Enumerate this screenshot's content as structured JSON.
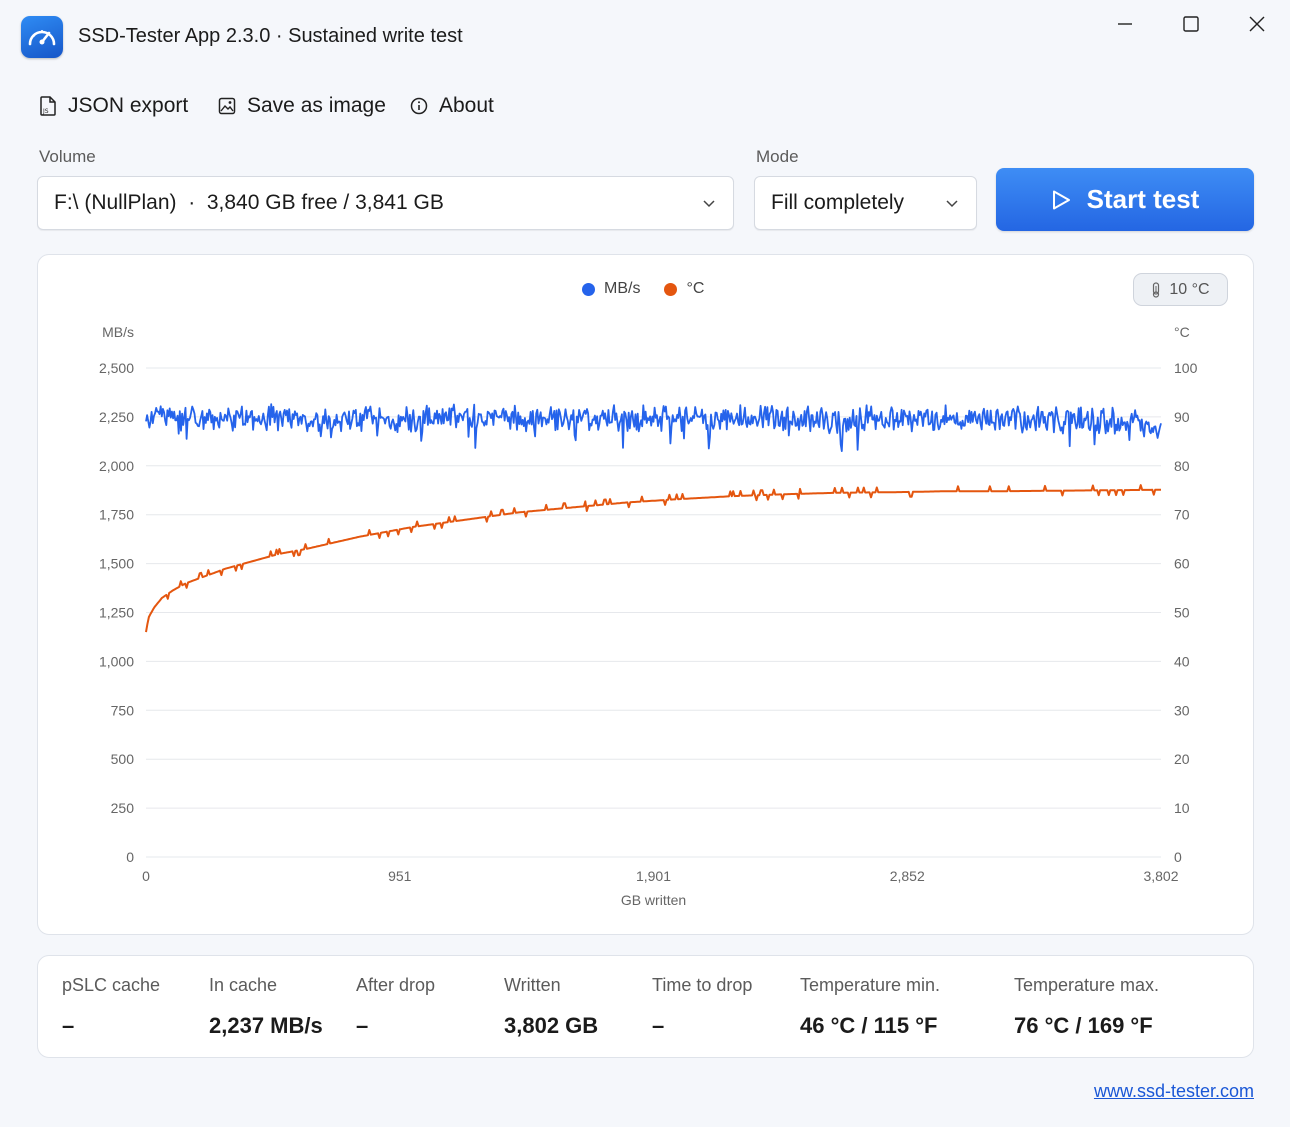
{
  "window": {
    "title": "SSD-Tester App 2.3.0 · Sustained write test"
  },
  "toolbar": {
    "json_export": "JSON export",
    "save_image": "Save as image",
    "about": "About"
  },
  "form": {
    "volume_label": "Volume",
    "volume_value": "F:\\ (NullPlan)  ·  3,840 GB free / 3,841 GB",
    "mode_label": "Mode",
    "mode_value": "Fill completely",
    "start_label": "Start test"
  },
  "chart_controls": {
    "temp_chip": "10 °C"
  },
  "colors": {
    "speed": "#2563eb",
    "temp": "#e4560f",
    "accent": "#2f78ee",
    "grid": "#e6e8ec"
  },
  "chart_data": {
    "type": "line",
    "xlabel": "GB written",
    "x_ticks": [
      "0",
      "951",
      "1,901",
      "2,852",
      "3,802"
    ],
    "xlim": [
      0,
      3802
    ],
    "y_left": {
      "unit": "MB/s",
      "lim": [
        0,
        2500
      ],
      "ticks": [
        "2,500",
        "2,250",
        "2,000",
        "1,750",
        "1,500",
        "1,250",
        "1,000",
        "750",
        "500",
        "250",
        "0"
      ]
    },
    "y_right": {
      "unit": "°C",
      "lim": [
        0,
        100
      ],
      "ticks": [
        "100",
        "90",
        "80",
        "70",
        "60",
        "50",
        "40",
        "30",
        "20",
        "10",
        "0"
      ]
    },
    "grid": true,
    "legend": "top-center",
    "series": [
      {
        "name": "MB/s",
        "axis": "left",
        "description_level": "noisy plateau",
        "x": [
          0,
          100,
          200,
          400,
          600,
          800,
          1000,
          1200,
          1400,
          1600,
          1800,
          2000,
          2200,
          2400,
          2600,
          2800,
          3000,
          3200,
          3400,
          3600,
          3700,
          3750,
          3802
        ],
        "values": [
          2240,
          2250,
          2245,
          2250,
          2240,
          2245,
          2240,
          2245,
          2242,
          2250,
          2245,
          2240,
          2245,
          2240,
          2235,
          2245,
          2240,
          2240,
          2235,
          2230,
          2225,
          2215,
          2190
        ],
        "noise": 70
      },
      {
        "name": "°C",
        "axis": "right",
        "x": [
          0,
          10,
          30,
          60,
          100,
          150,
          200,
          300,
          400,
          500,
          600,
          800,
          1000,
          1200,
          1400,
          1600,
          1800,
          2000,
          2200,
          2400,
          2600,
          2800,
          3000,
          3200,
          3400,
          3600,
          3802
        ],
        "values": [
          46,
          49,
          51,
          53,
          54.5,
          56,
          57,
          59,
          60.5,
          62,
          63,
          65.5,
          67.5,
          69,
          70.5,
          71.5,
          72.5,
          73.2,
          73.8,
          74.2,
          74.5,
          74.6,
          74.8,
          74.8,
          74.9,
          75,
          75.1
        ]
      }
    ]
  },
  "stats": [
    {
      "label": "pSLC cache",
      "value": "–"
    },
    {
      "label": "In cache",
      "value": "2,237 MB/s"
    },
    {
      "label": "After drop",
      "value": "–"
    },
    {
      "label": "Written",
      "value": "3,802 GB"
    },
    {
      "label": "Time to drop",
      "value": "–"
    },
    {
      "label": "Temperature min.",
      "value": "46 °C / 115 °F"
    },
    {
      "label": "Temperature max.",
      "value": "76 °C / 169 °F"
    }
  ],
  "footer": {
    "link": "www.ssd-tester.com"
  }
}
